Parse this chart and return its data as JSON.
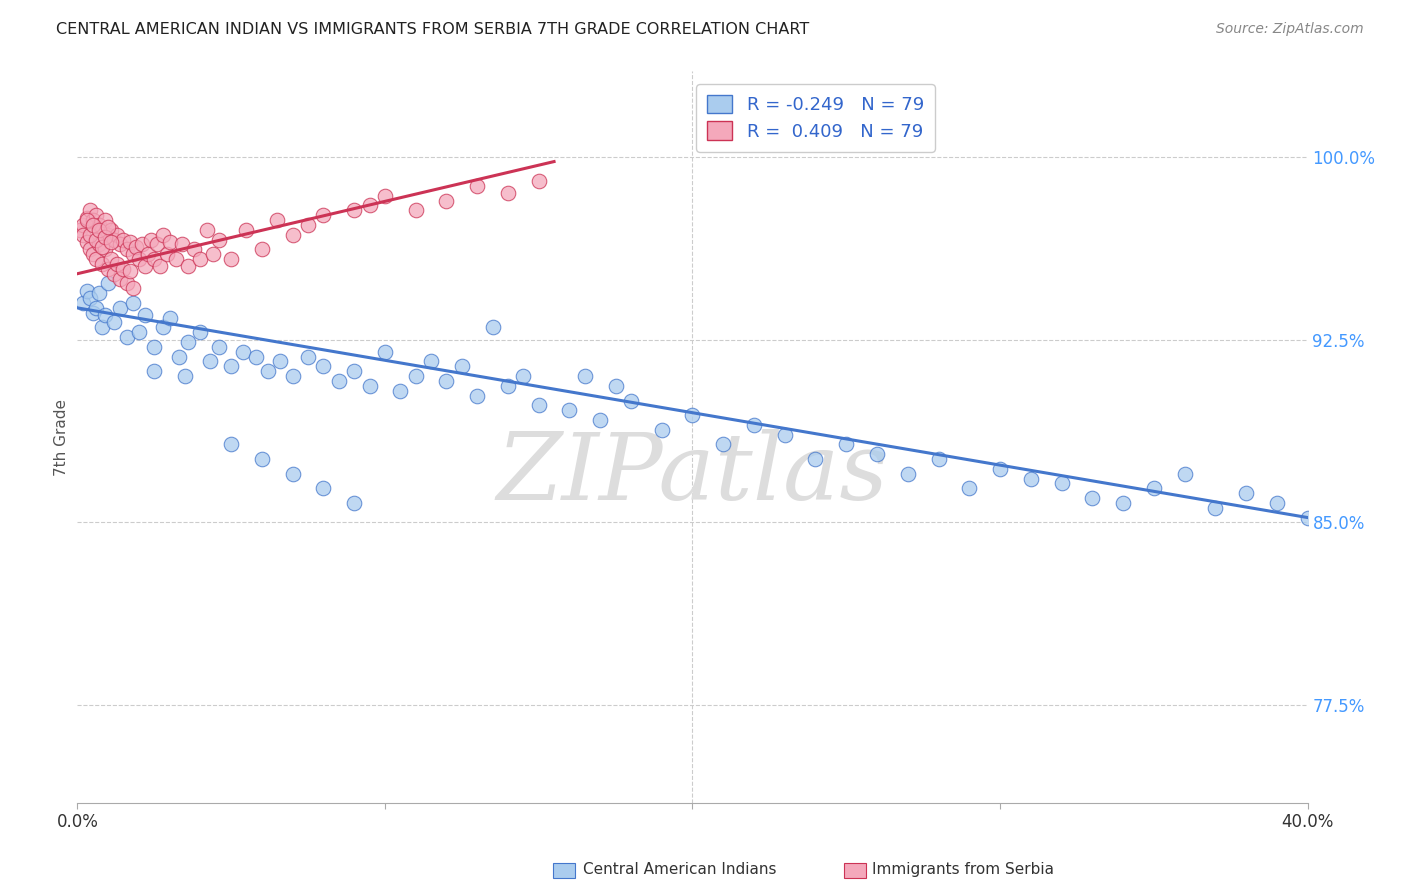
{
  "title": "CENTRAL AMERICAN INDIAN VS IMMIGRANTS FROM SERBIA 7TH GRADE CORRELATION CHART",
  "source": "Source: ZipAtlas.com",
  "ylabel": "7th Grade",
  "ytick_vals": [
    1.0,
    0.925,
    0.85,
    0.775
  ],
  "ytick_labels": [
    "100.0%",
    "92.5%",
    "85.0%",
    "77.5%"
  ],
  "xtick_vals": [
    0.0,
    0.1,
    0.2,
    0.3,
    0.4
  ],
  "xtick_labels": [
    "0.0%",
    "",
    "",
    "",
    "40.0%"
  ],
  "legend_blue_label": "Central American Indians",
  "legend_pink_label": "Immigrants from Serbia",
  "blue_color": "#aaccee",
  "pink_color": "#f4a8bb",
  "trendline_blue_color": "#4477cc",
  "trendline_pink_color": "#cc3355",
  "watermark_text": "ZIPatlas",
  "xmin": 0.0,
  "xmax": 0.4,
  "ymin": 0.735,
  "ymax": 1.035,
  "blue_trend_x": [
    0.0,
    0.4
  ],
  "blue_trend_y": [
    0.938,
    0.852
  ],
  "pink_trend_x": [
    0.0,
    0.155
  ],
  "pink_trend_y": [
    0.952,
    0.998
  ],
  "blue_scatter_x": [
    0.002,
    0.003,
    0.004,
    0.005,
    0.006,
    0.007,
    0.008,
    0.009,
    0.01,
    0.012,
    0.014,
    0.016,
    0.018,
    0.02,
    0.022,
    0.025,
    0.028,
    0.03,
    0.033,
    0.036,
    0.04,
    0.043,
    0.046,
    0.05,
    0.054,
    0.058,
    0.062,
    0.066,
    0.07,
    0.075,
    0.08,
    0.085,
    0.09,
    0.095,
    0.1,
    0.105,
    0.11,
    0.115,
    0.12,
    0.125,
    0.13,
    0.135,
    0.14,
    0.145,
    0.15,
    0.16,
    0.165,
    0.17,
    0.175,
    0.18,
    0.19,
    0.2,
    0.21,
    0.22,
    0.23,
    0.24,
    0.25,
    0.26,
    0.27,
    0.28,
    0.29,
    0.3,
    0.31,
    0.32,
    0.33,
    0.34,
    0.35,
    0.36,
    0.37,
    0.38,
    0.39,
    0.4,
    0.05,
    0.06,
    0.07,
    0.08,
    0.09,
    0.025,
    0.035
  ],
  "blue_scatter_y": [
    0.94,
    0.945,
    0.942,
    0.936,
    0.938,
    0.944,
    0.93,
    0.935,
    0.948,
    0.932,
    0.938,
    0.926,
    0.94,
    0.928,
    0.935,
    0.922,
    0.93,
    0.934,
    0.918,
    0.924,
    0.928,
    0.916,
    0.922,
    0.914,
    0.92,
    0.918,
    0.912,
    0.916,
    0.91,
    0.918,
    0.914,
    0.908,
    0.912,
    0.906,
    0.92,
    0.904,
    0.91,
    0.916,
    0.908,
    0.914,
    0.902,
    0.93,
    0.906,
    0.91,
    0.898,
    0.896,
    0.91,
    0.892,
    0.906,
    0.9,
    0.888,
    0.894,
    0.882,
    0.89,
    0.886,
    0.876,
    0.882,
    0.878,
    0.87,
    0.876,
    0.864,
    0.872,
    0.868,
    0.866,
    0.86,
    0.858,
    0.864,
    0.87,
    0.856,
    0.862,
    0.858,
    0.852,
    0.882,
    0.876,
    0.87,
    0.864,
    0.858,
    0.912,
    0.91
  ],
  "pink_scatter_x": [
    0.001,
    0.002,
    0.002,
    0.003,
    0.003,
    0.004,
    0.004,
    0.005,
    0.005,
    0.006,
    0.006,
    0.007,
    0.007,
    0.008,
    0.008,
    0.009,
    0.009,
    0.01,
    0.01,
    0.011,
    0.011,
    0.012,
    0.012,
    0.013,
    0.013,
    0.014,
    0.014,
    0.015,
    0.015,
    0.016,
    0.016,
    0.017,
    0.017,
    0.018,
    0.018,
    0.019,
    0.02,
    0.021,
    0.022,
    0.023,
    0.024,
    0.025,
    0.026,
    0.027,
    0.028,
    0.029,
    0.03,
    0.032,
    0.034,
    0.036,
    0.038,
    0.04,
    0.042,
    0.044,
    0.046,
    0.05,
    0.055,
    0.06,
    0.065,
    0.07,
    0.075,
    0.08,
    0.09,
    0.095,
    0.1,
    0.11,
    0.12,
    0.13,
    0.14,
    0.15,
    0.003,
    0.004,
    0.005,
    0.006,
    0.007,
    0.008,
    0.009,
    0.01,
    0.011
  ],
  "pink_scatter_y": [
    0.97,
    0.972,
    0.968,
    0.975,
    0.965,
    0.978,
    0.962,
    0.974,
    0.96,
    0.976,
    0.958,
    0.972,
    0.964,
    0.97,
    0.956,
    0.974,
    0.962,
    0.968,
    0.954,
    0.97,
    0.958,
    0.966,
    0.952,
    0.968,
    0.956,
    0.964,
    0.95,
    0.966,
    0.954,
    0.962,
    0.948,
    0.965,
    0.953,
    0.96,
    0.946,
    0.963,
    0.958,
    0.964,
    0.955,
    0.96,
    0.966,
    0.958,
    0.964,
    0.955,
    0.968,
    0.96,
    0.965,
    0.958,
    0.964,
    0.955,
    0.962,
    0.958,
    0.97,
    0.96,
    0.966,
    0.958,
    0.97,
    0.962,
    0.974,
    0.968,
    0.972,
    0.976,
    0.978,
    0.98,
    0.984,
    0.978,
    0.982,
    0.988,
    0.985,
    0.99,
    0.974,
    0.968,
    0.972,
    0.966,
    0.97,
    0.963,
    0.967,
    0.971,
    0.965
  ]
}
